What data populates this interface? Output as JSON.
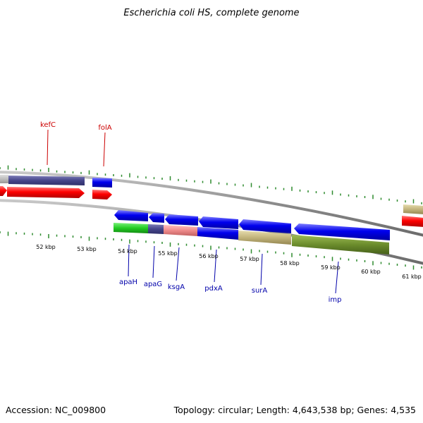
{
  "title": "Escherichia coli HS, complete genome",
  "footer": {
    "accession": "Accession: NC_009800",
    "summary": "Topology: circular; Length: 4,643,538 bp; Genes: 4,535"
  },
  "colors": {
    "forward_label": "#cc0000",
    "reverse_label": "#0000aa",
    "tick": "#2e8b2e",
    "backbone": "#8c8c8c"
  },
  "scale_labels": [
    "52 kbp",
    "53 kbp",
    "54 kbp",
    "55 kbp",
    "56 kbp",
    "57 kbp",
    "58 kbp",
    "59 kbp",
    "60 kbp",
    "61 kbp"
  ],
  "forward_gene_labels": [
    "kefC",
    "folA"
  ],
  "reverse_gene_labels": [
    "apaH",
    "apaG",
    "ksgA",
    "pdxA",
    "surA",
    "imp"
  ]
}
